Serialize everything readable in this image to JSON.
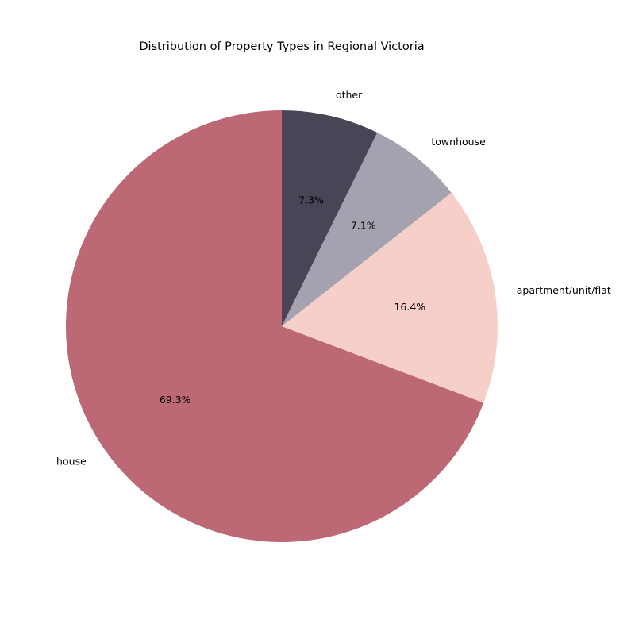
{
  "chart_data": {
    "type": "pie",
    "title": "Distribution of Property Types in Regional Victoria",
    "start_angle_deg": 90,
    "direction": "counterclockwise",
    "slices": [
      {
        "label": "house",
        "value": 69.3,
        "pct_label": "69.3%",
        "color": "#bc6875"
      },
      {
        "label": "apartment/unit/flat",
        "value": 16.4,
        "pct_label": "16.4%",
        "color": "#f7cfc9"
      },
      {
        "label": "townhouse",
        "value": 7.1,
        "pct_label": "7.1%",
        "color": "#a5a2b0"
      },
      {
        "label": "other",
        "value": 7.3,
        "pct_label": "7.3%",
        "color": "#4a4457"
      }
    ]
  }
}
